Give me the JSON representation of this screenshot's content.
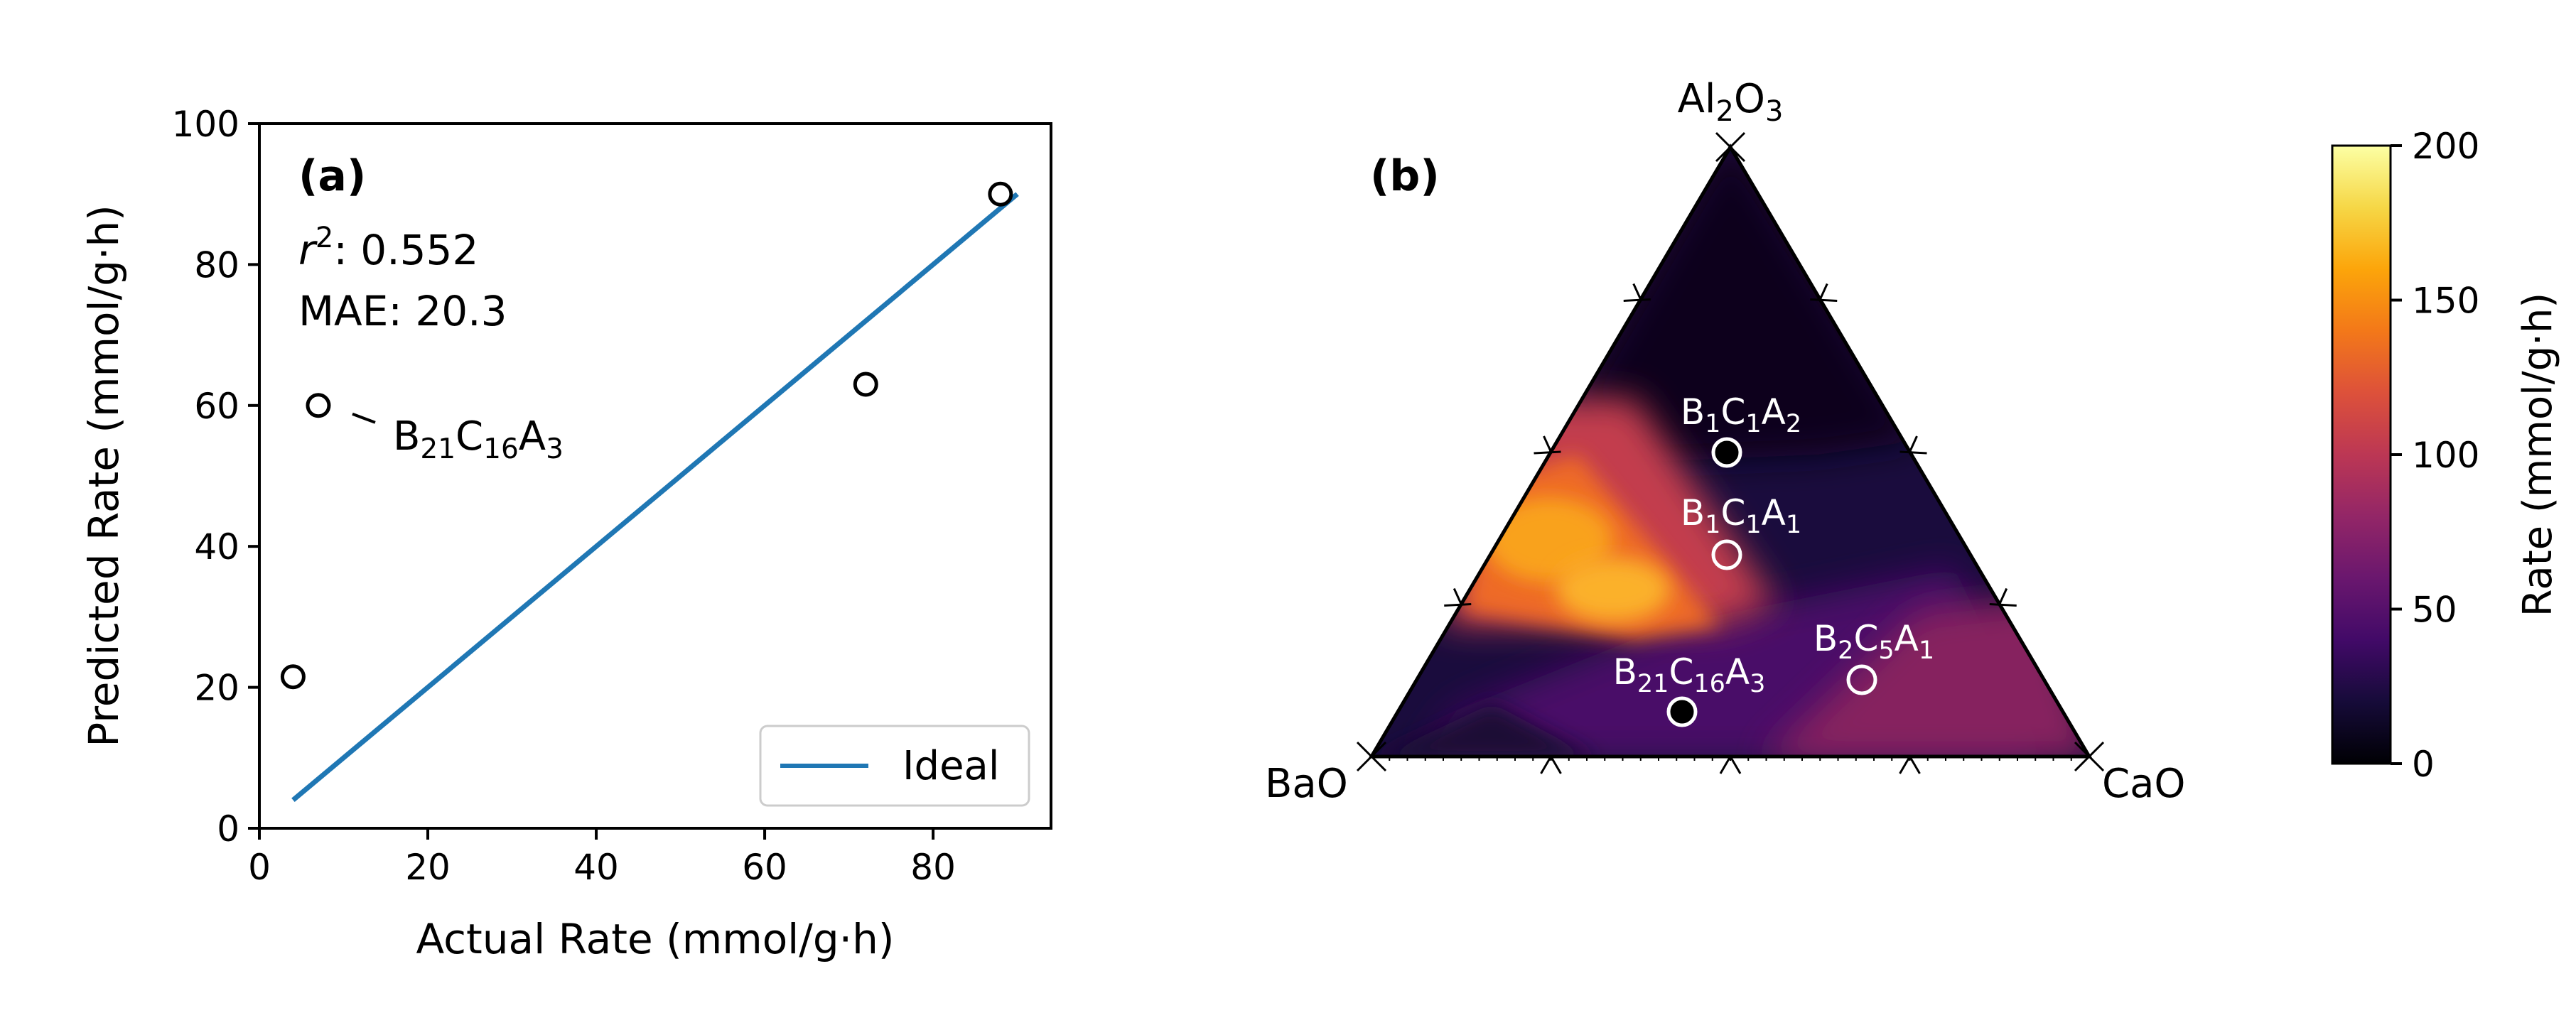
{
  "chart_data": [
    {
      "type": "scatter",
      "panel": "(a)",
      "xlabel": "Actual Rate (mmol/g·h)",
      "ylabel": "Predicted Rate (mmol/g·h)",
      "xlim": [
        0,
        94
      ],
      "ylim": [
        0,
        100
      ],
      "xticks": [
        0,
        20,
        40,
        60,
        80
      ],
      "yticks": [
        0,
        20,
        40,
        60,
        80,
        100
      ],
      "grid": false,
      "legend_position": "lower-right",
      "stats": {
        "r2_label": "r",
        "r2_sup": "2",
        "r2_value": "0.552",
        "mae_text": "MAE: 20.3"
      },
      "points": [
        {
          "x": 4,
          "y": 21.5,
          "label": ""
        },
        {
          "x": 7,
          "y": 60,
          "label": {
            "base": [
              "B",
              "C",
              "A"
            ],
            "subs": [
              "21",
              "16",
              "3"
            ]
          }
        },
        {
          "x": 72,
          "y": 63,
          "label": ""
        },
        {
          "x": 88,
          "y": 90,
          "label": ""
        }
      ],
      "series": [
        {
          "name": "Ideal",
          "kind": "line",
          "color": "#1f77b4",
          "x": [
            4,
            90
          ],
          "y": [
            4,
            90
          ]
        }
      ]
    },
    {
      "type": "heatmap",
      "subtype": "ternary",
      "panel": "(b)",
      "vertices": {
        "top": {
          "base": [
            "Al",
            "O"
          ],
          "subs": [
            "2",
            "3"
          ]
        },
        "left": "BaO",
        "right": "CaO"
      },
      "colorbar": {
        "label": "Rate (mmol/g·h)",
        "min": 0,
        "max": 200,
        "ticks": [
          0,
          50,
          100,
          150,
          200
        ],
        "colormap": "inferno"
      },
      "points": [
        {
          "name": {
            "base": [
              "B",
              "C",
              "A"
            ],
            "subs": [
              "1",
              "1",
              "2"
            ]
          },
          "fill": "black"
        },
        {
          "name": {
            "base": [
              "B",
              "C",
              "A"
            ],
            "subs": [
              "1",
              "1",
              "1"
            ]
          },
          "fill": "none"
        },
        {
          "name": {
            "base": [
              "B",
              "C",
              "A"
            ],
            "subs": [
              "2",
              "5",
              "1"
            ]
          },
          "fill": "none"
        },
        {
          "name": {
            "base": [
              "B",
              "C",
              "A"
            ],
            "subs": [
              "21",
              "16",
              "3"
            ]
          },
          "fill": "black"
        }
      ]
    }
  ]
}
